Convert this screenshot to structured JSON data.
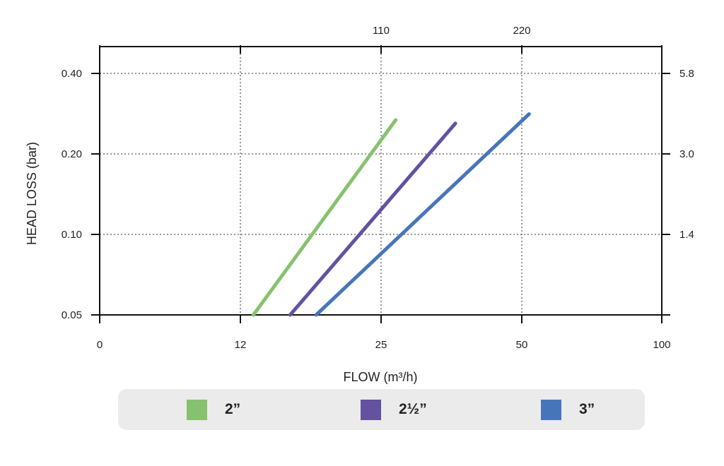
{
  "chart_data": {
    "type": "line",
    "xlabel": "FLOW (m³/h)",
    "ylabel": "HEAD LOSS (bar)",
    "x_tick_labels": [
      "0",
      "12",
      "25",
      "50",
      "100"
    ],
    "y_tick_labels": [
      "0.40",
      "0.20",
      "0.10",
      "0.05"
    ],
    "top_tick_labels": [
      "110",
      "220"
    ],
    "right_tick_labels": [
      "5.8",
      "3.0",
      "1.4"
    ],
    "xlim": [
      0,
      100
    ],
    "ylim": [
      0.05,
      0.4
    ],
    "grid": true,
    "legend_position": "bottom",
    "series": [
      {
        "name": "2”",
        "color": "#86c26e",
        "points": [
          [
            13.2,
            0.05
          ],
          [
            27.6,
            0.268
          ]
        ]
      },
      {
        "name": "2½”",
        "color": "#6451a0",
        "points": [
          [
            16.6,
            0.05
          ],
          [
            38.2,
            0.26
          ]
        ]
      },
      {
        "name": "3”",
        "color": "#4775b9",
        "points": [
          [
            19.0,
            0.05
          ],
          [
            52.6,
            0.282
          ]
        ]
      }
    ]
  }
}
